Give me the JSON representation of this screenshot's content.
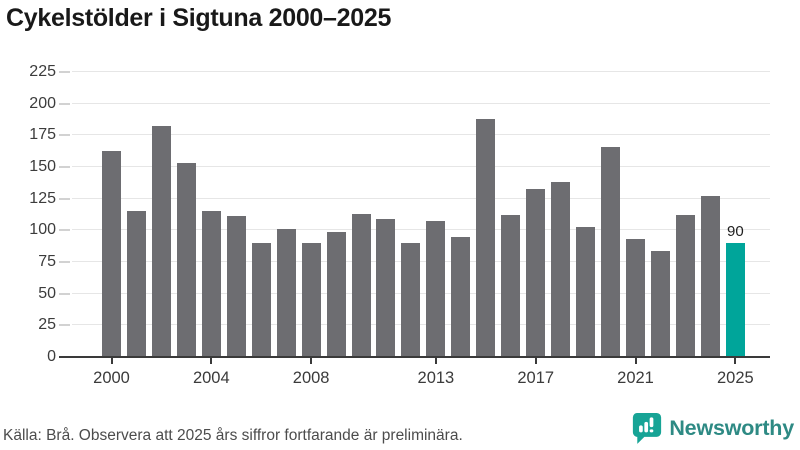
{
  "title": "Cykelstölder i Sigtuna 2000–2025",
  "chart_data": {
    "type": "bar",
    "x": [
      2000,
      2001,
      2002,
      2003,
      2004,
      2005,
      2006,
      2007,
      2008,
      2009,
      2010,
      2011,
      2012,
      2013,
      2014,
      2015,
      2016,
      2017,
      2018,
      2019,
      2020,
      2021,
      2022,
      2023,
      2024,
      2025
    ],
    "values": [
      163,
      115,
      182,
      153,
      115,
      111,
      90,
      101,
      90,
      99,
      113,
      109,
      90,
      107,
      95,
      188,
      112,
      133,
      138,
      103,
      166,
      93,
      84,
      112,
      127,
      90
    ],
    "title": "Cykelstölder i Sigtuna 2000–2025",
    "xlabel": "",
    "ylabel": "",
    "ylim": [
      0,
      235
    ],
    "yticks": [
      0,
      25,
      50,
      75,
      100,
      125,
      150,
      175,
      200,
      225
    ],
    "xticks": [
      2000,
      2004,
      2008,
      2013,
      2017,
      2021,
      2025
    ],
    "grid": true,
    "highlight_index": 25,
    "highlight_label": "90",
    "bar_color": "#6d6d71",
    "highlight_color": "#00a59a",
    "gridline_color": "#e6e6e6",
    "axis_color": "#3a3a3a"
  },
  "footer": {
    "source": "Källa: Brå. Observera att 2025 års siffror fortfarande är preliminära."
  },
  "branding": {
    "name": "Newsworthy",
    "icon": "bar-chart-speech-bubble-icon",
    "text_color": "#2e8a84",
    "icon_color": "#17a496"
  }
}
